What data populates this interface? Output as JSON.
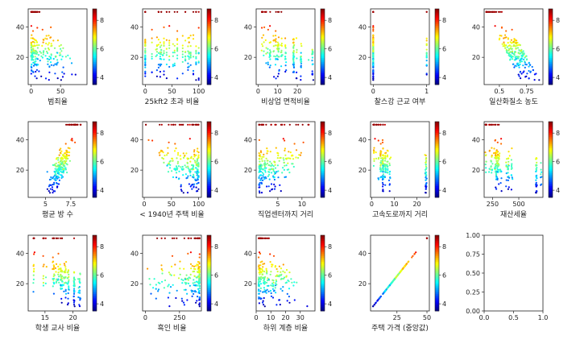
{
  "figure": {
    "rows": 3,
    "cols": 5,
    "background": "#ffffff"
  },
  "colormap": {
    "name": "jet",
    "range": [
      3.5,
      8.8
    ],
    "ticks": [
      4,
      6,
      8
    ],
    "stops": [
      "#00007f",
      "#0000ff",
      "#007fff",
      "#00ffff",
      "#7fff7f",
      "#ffff00",
      "#ff7f00",
      "#ff0000",
      "#7f0000"
    ]
  },
  "chart_data": [
    {
      "type": "scatter",
      "xlabel": "범죄율",
      "xlim": [
        -5,
        95
      ],
      "xticks": [
        0,
        50
      ],
      "ylim": [
        2,
        52
      ],
      "yticks": [
        20,
        40
      ],
      "x_dist": "skew",
      "x_range": [
        0.01,
        89
      ],
      "y_model": {
        "kind": "neg",
        "mode": "exp"
      },
      "has_colorbar": true
    },
    {
      "type": "scatter",
      "xlabel": "25kft2 초과 비율",
      "xlim": [
        -5,
        105
      ],
      "xticks": [
        0,
        50,
        100
      ],
      "ylim": [
        2,
        52
      ],
      "yticks": [
        20,
        40
      ],
      "x_dist": "discrete",
      "x_range": [
        0,
        100
      ],
      "x_levels": [
        0,
        0,
        0,
        0,
        12.5,
        20,
        22,
        25,
        28,
        30,
        33,
        35,
        40,
        45,
        52,
        55,
        60,
        70,
        75,
        80,
        82,
        85,
        90,
        95,
        100
      ],
      "y_model": {
        "kind": "pos",
        "mode": "linear"
      },
      "has_colorbar": true
    },
    {
      "type": "scatter",
      "xlabel": "비상업 면적비율",
      "xlim": [
        -1,
        29
      ],
      "xticks": [
        0,
        10,
        20
      ],
      "ylim": [
        2,
        52
      ],
      "yticks": [
        20,
        40
      ],
      "x_dist": "discrete",
      "x_range": [
        0.5,
        27.7
      ],
      "x_levels": [
        2,
        2.5,
        3,
        4,
        5,
        6,
        6.2,
        8,
        9,
        10,
        10.6,
        12,
        13.9,
        18.1,
        18.1,
        18.1,
        19.6,
        21.9,
        25.7,
        27.7
      ],
      "y_model": {
        "kind": "neg",
        "mode": "linear"
      },
      "has_colorbar": true
    },
    {
      "type": "scatter",
      "xlabel": "찰스강 근교 여부",
      "xlim": [
        -0.05,
        1.05
      ],
      "xticks": [
        0,
        1
      ],
      "ylim": [
        2,
        52
      ],
      "yticks": [
        20,
        40
      ],
      "x_dist": "binary",
      "x_range": [
        0,
        1
      ],
      "y_model": {
        "kind": "none",
        "mode": "linear"
      },
      "has_colorbar": true
    },
    {
      "type": "scatter",
      "xlabel": "일산화질소 농도",
      "xlim": [
        0.36,
        0.9
      ],
      "xticks": [
        0.5,
        0.75
      ],
      "ylim": [
        2,
        52
      ],
      "yticks": [
        20,
        40
      ],
      "x_dist": "uniform",
      "x_range": [
        0.38,
        0.87
      ],
      "y_model": {
        "kind": "neg",
        "mode": "linear"
      },
      "has_colorbar": true
    },
    {
      "type": "scatter",
      "xlabel": "평균 방 수",
      "xlim": [
        3.3,
        9.1
      ],
      "xticks": [
        5,
        7.5
      ],
      "ylim": [
        2,
        52
      ],
      "yticks": [
        20,
        40
      ],
      "x_dist": "normal",
      "x_range": [
        3.6,
        8.8
      ],
      "y_model": {
        "kind": "rooms",
        "mode": "linear"
      },
      "has_colorbar": true
    },
    {
      "type": "scatter",
      "xlabel": "< 1940년 주택 비율",
      "xlim": [
        -3,
        105
      ],
      "xticks": [
        0,
        50,
        100
      ],
      "ylim": [
        2,
        52
      ],
      "yticks": [
        20,
        40
      ],
      "x_dist": "skewhigh",
      "x_range": [
        3,
        100
      ],
      "y_model": {
        "kind": "neg",
        "mode": "linear"
      },
      "has_colorbar": true
    },
    {
      "type": "scatter",
      "xlabel": "직업센터까지 거리",
      "xlim": [
        0.5,
        12.7
      ],
      "xticks": [
        5,
        10
      ],
      "ylim": [
        2,
        52
      ],
      "yticks": [
        20,
        40
      ],
      "x_dist": "skew",
      "x_range": [
        1.1,
        12.1
      ],
      "y_model": {
        "kind": "pos",
        "mode": "linear"
      },
      "has_colorbar": true
    },
    {
      "type": "scatter",
      "xlabel": "고속도로까지 거리",
      "xlim": [
        -0.5,
        25.5
      ],
      "xticks": [
        0,
        10,
        20
      ],
      "ylim": [
        2,
        52
      ],
      "yticks": [
        20,
        40
      ],
      "x_dist": "discrete",
      "x_range": [
        1,
        24
      ],
      "x_levels": [
        1,
        2,
        3,
        4,
        4,
        5,
        5,
        5,
        6,
        7,
        8,
        24,
        24,
        24
      ],
      "y_model": {
        "kind": "neg",
        "mode": "linear"
      },
      "has_colorbar": true
    },
    {
      "type": "scatter",
      "xlabel": "재산세율",
      "xlim": [
        170,
        730
      ],
      "xticks": [
        250,
        500
      ],
      "ylim": [
        2,
        52
      ],
      "yticks": [
        20,
        40
      ],
      "x_dist": "discrete",
      "x_range": [
        187,
        711
      ],
      "x_levels": [
        188,
        222,
        233,
        245,
        264,
        276,
        277,
        281,
        287,
        293,
        300,
        304,
        307,
        311,
        330,
        384,
        398,
        403,
        432,
        666,
        666,
        666,
        711
      ],
      "y_model": {
        "kind": "neg",
        "mode": "linear"
      },
      "has_colorbar": true
    },
    {
      "type": "scatter",
      "xlabel": "학생 교사 비율",
      "xlim": [
        12,
        22.5
      ],
      "xticks": [
        15,
        20
      ],
      "ylim": [
        2,
        52
      ],
      "yticks": [
        20,
        40
      ],
      "x_dist": "discrete",
      "x_range": [
        12.6,
        22
      ],
      "x_levels": [
        13,
        14.7,
        14.8,
        15.2,
        16.4,
        16.6,
        17,
        17.4,
        17.8,
        18,
        18.4,
        18.7,
        19.1,
        19.2,
        20.2,
        20.2,
        20.2,
        21,
        21.2
      ],
      "y_model": {
        "kind": "neg",
        "mode": "linear"
      },
      "has_colorbar": true
    },
    {
      "type": "scatter",
      "xlabel": "흑인 비율",
      "xlim": [
        -20,
        410
      ],
      "xticks": [
        0,
        250
      ],
      "ylim": [
        2,
        52
      ],
      "yticks": [
        20,
        40
      ],
      "x_dist": "skewhigh",
      "x_range": [
        0.3,
        397
      ],
      "y_model": {
        "kind": "pos",
        "mode": "linear"
      },
      "has_colorbar": true
    },
    {
      "type": "scatter",
      "xlabel": "하위 계층 비율",
      "xlim": [
        0,
        40
      ],
      "xticks": [
        0,
        10,
        20,
        30
      ],
      "ylim": [
        2,
        52
      ],
      "yticks": [
        20,
        40
      ],
      "x_dist": "skew",
      "x_range": [
        1.7,
        38
      ],
      "y_model": {
        "kind": "lstat",
        "mode": "exp"
      },
      "has_colorbar": true
    },
    {
      "type": "scatter",
      "xlabel": "주택 가격 (중앙값)",
      "xlim": [
        3,
        52
      ],
      "xticks": [
        25,
        50
      ],
      "ylim": [
        2,
        52
      ],
      "yticks": [
        20,
        40
      ],
      "x_dist": "identity",
      "x_range": [
        5,
        50
      ],
      "y_model": {
        "kind": "identity",
        "mode": "linear"
      },
      "has_colorbar": true
    },
    {
      "type": "empty",
      "xlabel": "",
      "xlim": [
        0,
        1
      ],
      "xticks": [
        0.0,
        0.5,
        1.0
      ],
      "ylim": [
        0,
        1
      ],
      "yticks": [
        0.0,
        0.25,
        0.5,
        0.75,
        1.0
      ],
      "has_colorbar": false
    }
  ]
}
